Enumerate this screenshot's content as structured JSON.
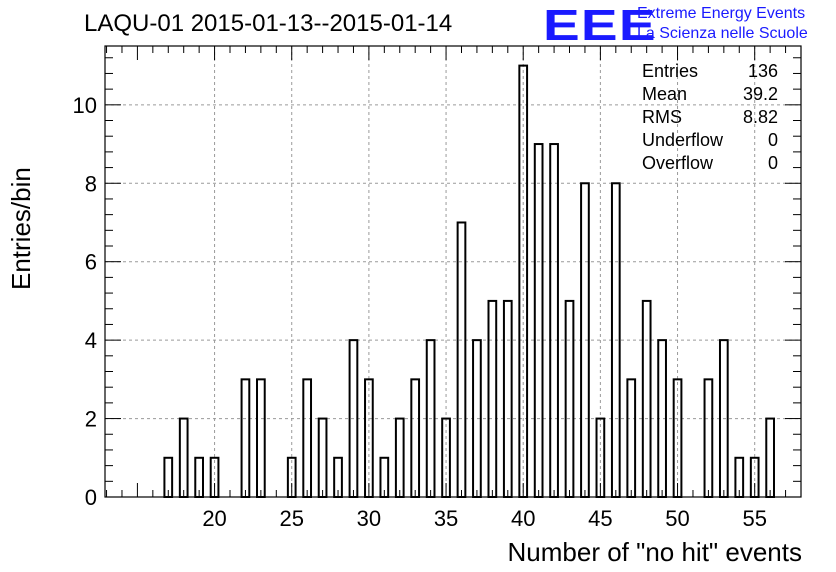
{
  "chart_data": {
    "type": "bar",
    "title": "LAQU-01 2015-01-13--2015-01-14",
    "xlabel": "Number of \"no hit\" events",
    "ylabel": "Entries/bin",
    "xlim": [
      12.9,
      58
    ],
    "ylim": [
      0,
      11.5
    ],
    "grid": true,
    "bin_width": 1,
    "x": [
      17,
      18,
      19,
      20,
      21,
      22,
      23,
      24,
      25,
      26,
      27,
      28,
      29,
      30,
      31,
      32,
      33,
      34,
      35,
      36,
      37,
      38,
      39,
      40,
      41,
      42,
      43,
      44,
      45,
      46,
      47,
      48,
      49,
      50,
      51,
      52,
      53,
      54,
      55,
      56
    ],
    "values": [
      1,
      2,
      1,
      1,
      0,
      3,
      3,
      0,
      1,
      3,
      2,
      1,
      4,
      3,
      1,
      2,
      3,
      4,
      2,
      7,
      4,
      5,
      5,
      11,
      9,
      9,
      5,
      8,
      2,
      8,
      3,
      5,
      4,
      3,
      0,
      3,
      4,
      1,
      1,
      2
    ],
    "x_ticks": [
      20,
      25,
      30,
      35,
      40,
      45,
      50,
      55
    ],
    "y_ticks": [
      0,
      2,
      4,
      6,
      8,
      10
    ],
    "stats": [
      {
        "label": "Entries",
        "value": "136"
      },
      {
        "label": "Mean",
        "value": "39.2"
      },
      {
        "label": "RMS",
        "value": "8.82"
      },
      {
        "label": "Underflow",
        "value": "0"
      },
      {
        "label": "Overflow",
        "value": "0"
      }
    ]
  },
  "logo": {
    "mark": "EEE",
    "line1": "Extreme Energy Events",
    "line2": "La Scienza nelle Scuole",
    "color": "#1a1aff"
  }
}
